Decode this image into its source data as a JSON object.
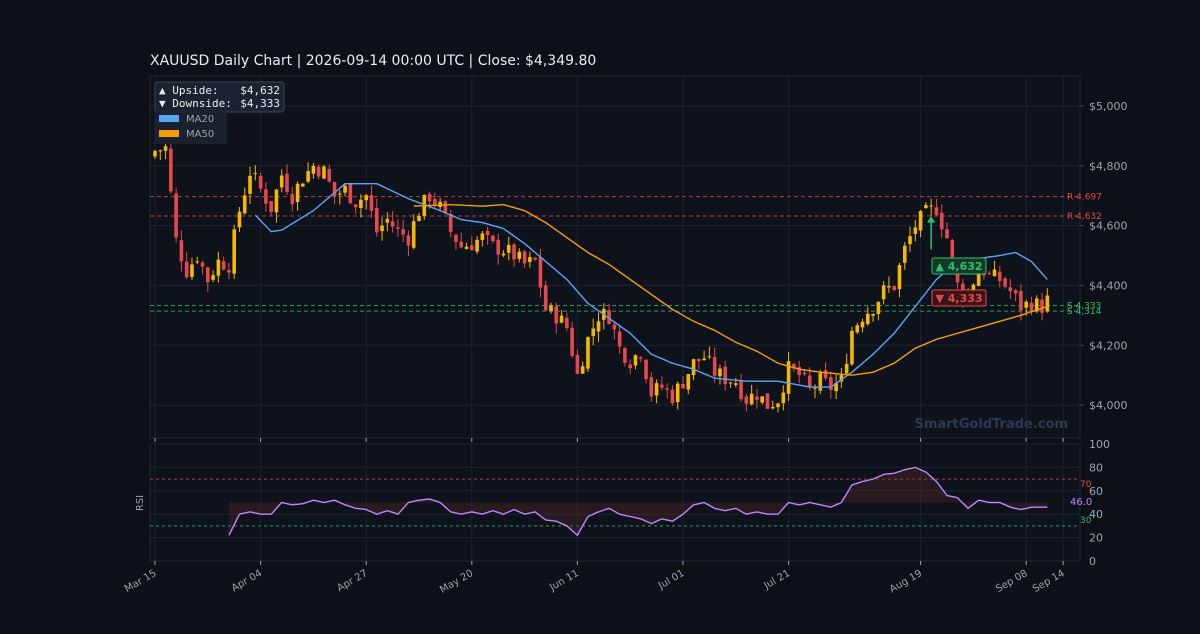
{
  "title": "XAUUSD  Daily Chart  |  2026-09-14 00:00 UTC  |  Close: $4,349.80",
  "watermark": "SmartGoldTrade.com",
  "colors": {
    "background": "#0d1117",
    "panel": "#0e131b",
    "grid": "#1c2330",
    "up": "#f5b700",
    "down": "#e5484d",
    "ma20": "#5ba4f5",
    "ma50": "#f59e0b",
    "rsi": "#c084fc",
    "resistance": "#e5484d",
    "support": "#2fbf71",
    "text": "#e6edf3",
    "axis_text": "#9aa4b2"
  },
  "info_box": {
    "upside_label": "▲ Upside:",
    "upside_value": "$4,632",
    "downside_label": "▼ Downside:",
    "downside_value": "$4,333"
  },
  "chart_data": {
    "type": "candlestick",
    "title": "XAUUSD  Daily Chart  |  2026-09-14 00:00 UTC  |  Close: $4,349.80",
    "x_tick_labels": [
      "Mar 15",
      "Apr 04",
      "Apr 27",
      "May 20",
      "Jun 11",
      "Jul 01",
      "Jul 21",
      "Aug 19",
      "Sep 08",
      "Sep 14"
    ],
    "x_tick_days": [
      0,
      20,
      40,
      60,
      80,
      100,
      120,
      145,
      165,
      172
    ],
    "price_axis": {
      "ylim": [
        3890,
        5100
      ],
      "ticks": [
        4000,
        4200,
        4400,
        4600,
        4800,
        5000
      ],
      "tick_labels": [
        "$4,000",
        "$4,200",
        "$4,400",
        "$4,600",
        "$4,800",
        "$5,000"
      ]
    },
    "legend": {
      "placement": "top-left",
      "entries": [
        "MA20",
        "MA50"
      ]
    },
    "levels": [
      {
        "label": "R 4,697",
        "value": 4697,
        "kind": "resistance"
      },
      {
        "label": "R 4,632",
        "value": 4632,
        "kind": "resistance"
      },
      {
        "label": "S 4,333",
        "value": 4333,
        "kind": "support"
      },
      {
        "label": "S 4,314",
        "value": 4314,
        "kind": "support"
      }
    ],
    "target_badges": [
      {
        "label": "▲ 4,632",
        "value": 4632,
        "kind": "up",
        "day": 147
      },
      {
        "label": "▼ 4,333",
        "value": 4333,
        "kind": "down",
        "day": 147
      }
    ],
    "price_anchors": [
      [
        0,
        4850
      ],
      [
        2,
        4860
      ],
      [
        4,
        4550
      ],
      [
        6,
        4450
      ],
      [
        8,
        4500
      ],
      [
        10,
        4420
      ],
      [
        12,
        4480
      ],
      [
        14,
        4470
      ],
      [
        16,
        4650
      ],
      [
        18,
        4780
      ],
      [
        20,
        4720
      ],
      [
        22,
        4660
      ],
      [
        24,
        4770
      ],
      [
        26,
        4700
      ],
      [
        28,
        4760
      ],
      [
        30,
        4800
      ],
      [
        32,
        4780
      ],
      [
        34,
        4700
      ],
      [
        36,
        4720
      ],
      [
        38,
        4680
      ],
      [
        40,
        4700
      ],
      [
        42,
        4580
      ],
      [
        44,
        4620
      ],
      [
        46,
        4580
      ],
      [
        48,
        4560
      ],
      [
        50,
        4650
      ],
      [
        52,
        4700
      ],
      [
        54,
        4660
      ],
      [
        56,
        4580
      ],
      [
        58,
        4530
      ],
      [
        60,
        4540
      ],
      [
        62,
        4560
      ],
      [
        64,
        4530
      ],
      [
        66,
        4520
      ],
      [
        68,
        4500
      ],
      [
        70,
        4470
      ],
      [
        72,
        4480
      ],
      [
        74,
        4320
      ],
      [
        76,
        4300
      ],
      [
        78,
        4260
      ],
      [
        80,
        4100
      ],
      [
        82,
        4220
      ],
      [
        84,
        4300
      ],
      [
        86,
        4300
      ],
      [
        88,
        4190
      ],
      [
        90,
        4150
      ],
      [
        92,
        4180
      ],
      [
        94,
        4040
      ],
      [
        96,
        4060
      ],
      [
        98,
        4030
      ],
      [
        100,
        4080
      ],
      [
        102,
        4140
      ],
      [
        104,
        4160
      ],
      [
        106,
        4110
      ],
      [
        108,
        4090
      ],
      [
        110,
        4080
      ],
      [
        112,
        4020
      ],
      [
        114,
        4040
      ],
      [
        116,
        4000
      ],
      [
        118,
        4020
      ],
      [
        120,
        4120
      ],
      [
        122,
        4100
      ],
      [
        124,
        4050
      ],
      [
        126,
        4080
      ],
      [
        128,
        4060
      ],
      [
        130,
        4080
      ],
      [
        132,
        4250
      ],
      [
        134,
        4300
      ],
      [
        136,
        4330
      ],
      [
        138,
        4380
      ],
      [
        140,
        4400
      ],
      [
        142,
        4520
      ],
      [
        144,
        4600
      ],
      [
        146,
        4640
      ],
      [
        148,
        4660
      ],
      [
        150,
        4560
      ],
      [
        152,
        4400
      ],
      [
        154,
        4360
      ],
      [
        156,
        4470
      ],
      [
        158,
        4430
      ],
      [
        160,
        4420
      ],
      [
        162,
        4380
      ],
      [
        164,
        4330
      ],
      [
        166,
        4340
      ],
      [
        168,
        4330
      ],
      [
        169,
        4350
      ]
    ],
    "ma20_anchors": [
      [
        19,
        4635
      ],
      [
        22,
        4580
      ],
      [
        24,
        4585
      ],
      [
        30,
        4650
      ],
      [
        36,
        4740
      ],
      [
        42,
        4740
      ],
      [
        48,
        4690
      ],
      [
        54,
        4650
      ],
      [
        58,
        4620
      ],
      [
        62,
        4610
      ],
      [
        66,
        4590
      ],
      [
        70,
        4540
      ],
      [
        74,
        4480
      ],
      [
        78,
        4420
      ],
      [
        82,
        4340
      ],
      [
        86,
        4290
      ],
      [
        90,
        4240
      ],
      [
        94,
        4170
      ],
      [
        98,
        4140
      ],
      [
        102,
        4120
      ],
      [
        106,
        4090
      ],
      [
        112,
        4080
      ],
      [
        118,
        4080
      ],
      [
        124,
        4060
      ],
      [
        128,
        4060
      ],
      [
        132,
        4110
      ],
      [
        136,
        4170
      ],
      [
        140,
        4240
      ],
      [
        144,
        4330
      ],
      [
        148,
        4420
      ],
      [
        152,
        4480
      ],
      [
        156,
        4490
      ],
      [
        160,
        4500
      ],
      [
        163,
        4510
      ],
      [
        166,
        4480
      ],
      [
        169,
        4420
      ]
    ],
    "ma50_anchors": [
      [
        49,
        4665
      ],
      [
        56,
        4670
      ],
      [
        62,
        4665
      ],
      [
        66,
        4670
      ],
      [
        70,
        4650
      ],
      [
        74,
        4610
      ],
      [
        78,
        4560
      ],
      [
        82,
        4510
      ],
      [
        86,
        4470
      ],
      [
        90,
        4420
      ],
      [
        94,
        4370
      ],
      [
        98,
        4320
      ],
      [
        102,
        4280
      ],
      [
        106,
        4250
      ],
      [
        110,
        4210
      ],
      [
        114,
        4180
      ],
      [
        118,
        4140
      ],
      [
        122,
        4120
      ],
      [
        126,
        4110
      ],
      [
        132,
        4100
      ],
      [
        136,
        4110
      ],
      [
        140,
        4140
      ],
      [
        144,
        4190
      ],
      [
        148,
        4220
      ],
      [
        152,
        4240
      ],
      [
        156,
        4260
      ],
      [
        160,
        4280
      ],
      [
        164,
        4300
      ],
      [
        169,
        4330
      ]
    ],
    "rsi": {
      "ylabel": "RSI",
      "ylim": [
        0,
        100
      ],
      "ticks": [
        0,
        20,
        40,
        60,
        80,
        100
      ],
      "overbought": 70,
      "overbought_label": "70",
      "oversold": 30,
      "oversold_label": "30",
      "last_value_label": "46.0",
      "anchors": [
        [
          14,
          22
        ],
        [
          16,
          40
        ],
        [
          18,
          42
        ],
        [
          20,
          40
        ],
        [
          22,
          40
        ],
        [
          24,
          50
        ],
        [
          26,
          48
        ],
        [
          28,
          49
        ],
        [
          30,
          52
        ],
        [
          32,
          50
        ],
        [
          34,
          52
        ],
        [
          36,
          48
        ],
        [
          38,
          45
        ],
        [
          40,
          44
        ],
        [
          42,
          40
        ],
        [
          44,
          43
        ],
        [
          46,
          40
        ],
        [
          48,
          50
        ],
        [
          50,
          52
        ],
        [
          52,
          53
        ],
        [
          54,
          50
        ],
        [
          56,
          42
        ],
        [
          58,
          40
        ],
        [
          60,
          42
        ],
        [
          62,
          40
        ],
        [
          64,
          43
        ],
        [
          66,
          40
        ],
        [
          68,
          44
        ],
        [
          70,
          40
        ],
        [
          72,
          42
        ],
        [
          74,
          35
        ],
        [
          76,
          34
        ],
        [
          78,
          30
        ],
        [
          80,
          22
        ],
        [
          82,
          38
        ],
        [
          84,
          42
        ],
        [
          86,
          45
        ],
        [
          88,
          40
        ],
        [
          90,
          38
        ],
        [
          92,
          36
        ],
        [
          94,
          32
        ],
        [
          96,
          36
        ],
        [
          98,
          34
        ],
        [
          100,
          40
        ],
        [
          102,
          48
        ],
        [
          104,
          50
        ],
        [
          106,
          45
        ],
        [
          108,
          43
        ],
        [
          110,
          45
        ],
        [
          112,
          40
        ],
        [
          114,
          42
        ],
        [
          116,
          40
        ],
        [
          118,
          40
        ],
        [
          120,
          50
        ],
        [
          122,
          48
        ],
        [
          124,
          50
        ],
        [
          126,
          48
        ],
        [
          128,
          46
        ],
        [
          130,
          50
        ],
        [
          132,
          65
        ],
        [
          134,
          68
        ],
        [
          136,
          70
        ],
        [
          138,
          74
        ],
        [
          140,
          75
        ],
        [
          142,
          78
        ],
        [
          144,
          80
        ],
        [
          146,
          76
        ],
        [
          148,
          68
        ],
        [
          150,
          56
        ],
        [
          152,
          54
        ],
        [
          154,
          45
        ],
        [
          156,
          52
        ],
        [
          158,
          50
        ],
        [
          160,
          50
        ],
        [
          162,
          46
        ],
        [
          164,
          44
        ],
        [
          166,
          46
        ],
        [
          168,
          46
        ],
        [
          169,
          46
        ]
      ]
    }
  }
}
